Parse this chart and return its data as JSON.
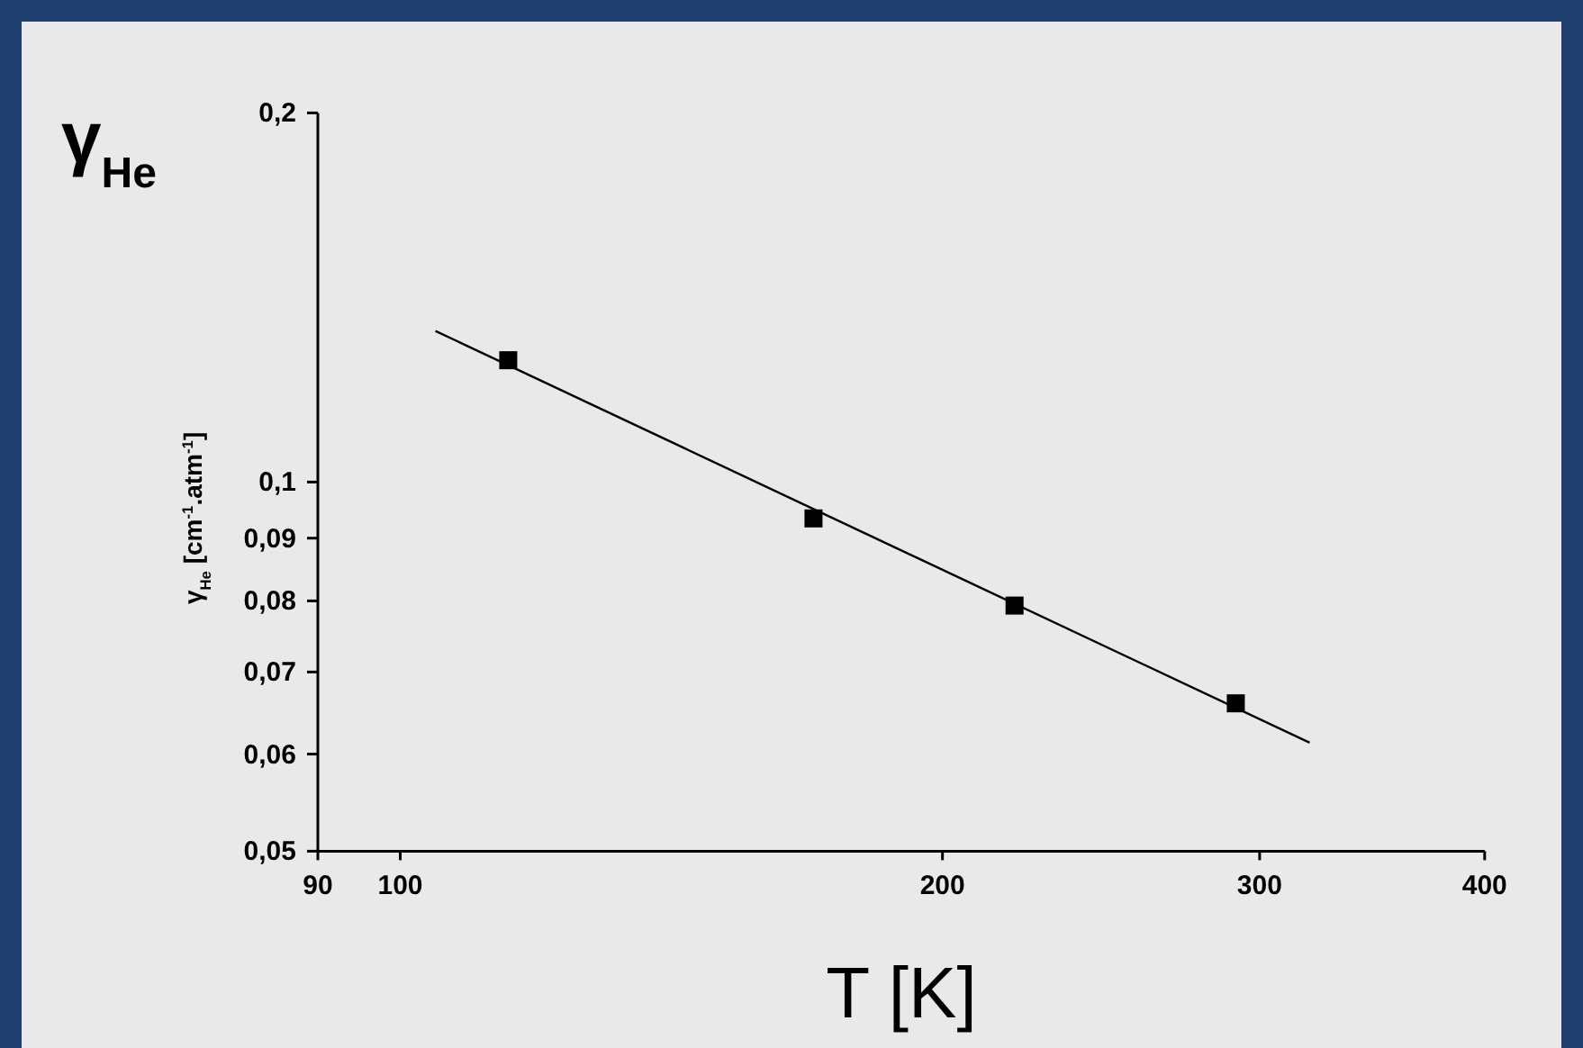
{
  "chart_data": {
    "type": "scatter",
    "title": "γ$_{He}$",
    "xlabel": "T [K]",
    "ylabel": "γ$_{He}$ [cm$^{-1}$.atm$^{-1}$]",
    "log": "xy",
    "xlim": [
      90,
      400
    ],
    "ylim": [
      0.05,
      0.2
    ],
    "xticks": [
      90,
      100,
      200,
      300,
      400
    ],
    "yticks": [
      {
        "value": 0.05,
        "label": "0,05"
      },
      {
        "value": 0.06,
        "label": "0,06"
      },
      {
        "value": 0.07,
        "label": "0,07"
      },
      {
        "value": 0.08,
        "label": "0,08"
      },
      {
        "value": 0.09,
        "label": "0,09"
      },
      {
        "value": 0.1,
        "label": "0,1"
      },
      {
        "value": 0.2,
        "label": "0,2"
      }
    ],
    "marker": "square",
    "grid": false,
    "series": [
      {
        "color": "#000000",
        "x": [
          114.8,
          169.6,
          219.3,
          291
        ],
        "values": [
          0.1257,
          0.0934,
          0.0793,
          0.066
        ]
      },
      {
        "type": "line",
        "color": "#000000",
        "marker": "none",
        "line_style": "solid",
        "x": [
          104.6,
          319.8
        ],
        "values": [
          0.1328,
          0.0613
        ]
      }
    ]
  }
}
